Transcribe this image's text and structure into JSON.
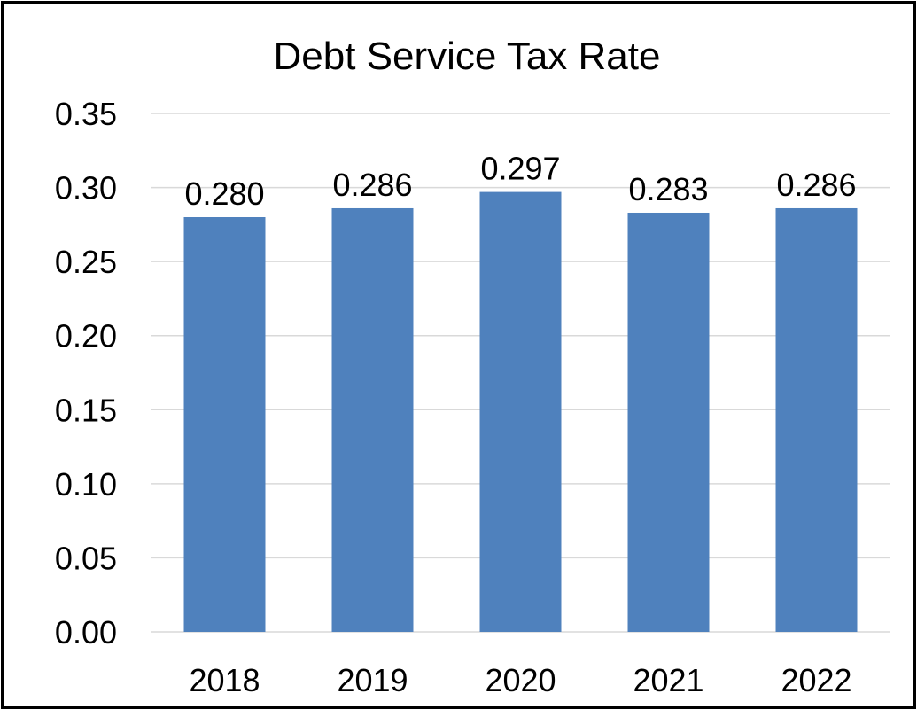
{
  "chart_data": {
    "type": "bar",
    "title": "Debt Service Tax Rate",
    "categories": [
      "2018",
      "2019",
      "2020",
      "2021",
      "2022"
    ],
    "values": [
      0.28,
      0.286,
      0.297,
      0.283,
      0.286
    ],
    "data_labels": [
      "0.280",
      "0.286",
      "0.297",
      "0.283",
      "0.286"
    ],
    "y_ticks": [
      "0.00",
      "0.05",
      "0.10",
      "0.15",
      "0.20",
      "0.25",
      "0.30",
      "0.35"
    ],
    "ylim": [
      0,
      0.35
    ],
    "xlabel": "",
    "ylabel": "",
    "grid": true,
    "legend": "none",
    "bar_color": "#4f81bd"
  }
}
